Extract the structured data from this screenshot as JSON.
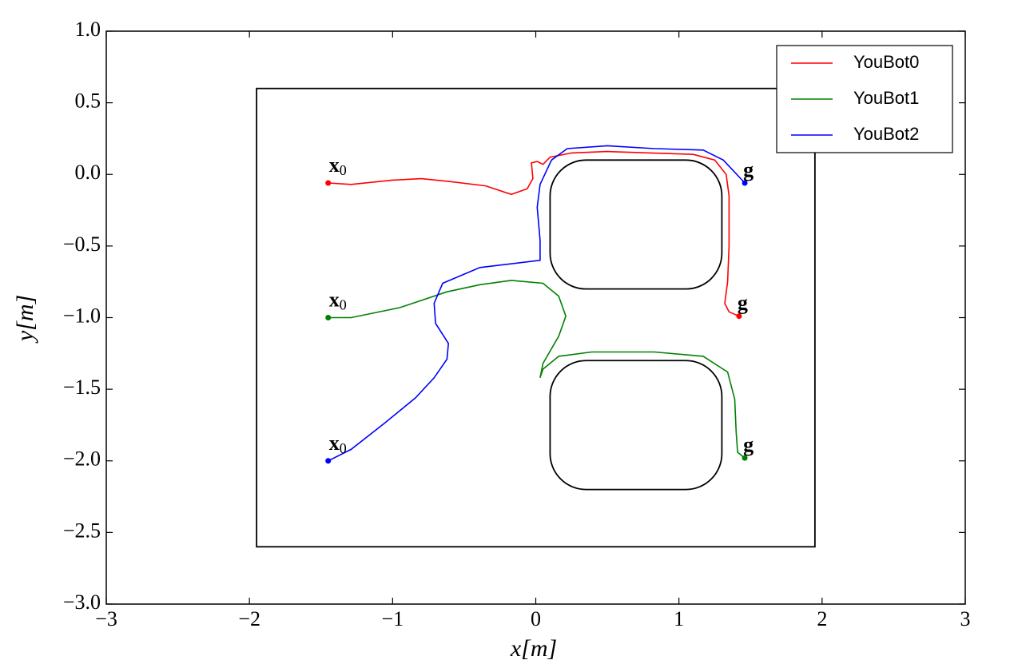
{
  "chart_data": {
    "type": "line",
    "xlabel": "x[m]",
    "ylabel": "y[m]",
    "xlim": [
      -3,
      3
    ],
    "ylim": [
      -3,
      1
    ],
    "xticks": [
      {
        "value": -3,
        "label": "−3"
      },
      {
        "value": -2,
        "label": "−2"
      },
      {
        "value": -1,
        "label": "−1"
      },
      0,
      1,
      2,
      3
    ],
    "yticks": [
      {
        "value": -3,
        "label": "−3.0"
      },
      {
        "value": -2.5,
        "label": "−2.5"
      },
      {
        "value": -2,
        "label": "−2.0"
      },
      {
        "value": -1.5,
        "label": "−1.5"
      },
      {
        "value": -1,
        "label": "−1.0"
      },
      {
        "value": -0.5,
        "label": "−0.5"
      },
      {
        "value": 0,
        "label": "0.0"
      },
      0.5,
      {
        "value": 1,
        "label": "1.0"
      }
    ],
    "grid": false,
    "legend": "upper right",
    "start_label": {
      "text": "x",
      "sub": "0"
    },
    "goal_label": "g",
    "obstacles": {
      "color": "#000000",
      "rects": [
        {
          "xlim": [
            -1.95,
            1.95
          ],
          "ylim": [
            -2.6,
            0.6
          ],
          "rounded": false
        },
        {
          "xlim": [
            0.1,
            1.3
          ],
          "ylim": [
            -0.8,
            0.1
          ],
          "rounded": true
        },
        {
          "xlim": [
            0.1,
            1.3
          ],
          "ylim": [
            -2.2,
            -1.3
          ],
          "rounded": true
        }
      ]
    },
    "series": [
      {
        "name": "YouBot0",
        "color": "#ff0000",
        "x": [
          -1.45,
          -1.29,
          -1.0,
          -0.8,
          -0.6,
          -0.35,
          -0.17,
          -0.06,
          -0.02,
          -0.03,
          0.01,
          0.05,
          0.1,
          0.25,
          0.5,
          0.8,
          1.1,
          1.25,
          1.33,
          1.35,
          1.35,
          1.34,
          1.32,
          1.35,
          1.42
        ],
        "y": [
          -0.06,
          -0.07,
          -0.04,
          -0.03,
          -0.05,
          -0.08,
          -0.14,
          -0.1,
          -0.03,
          0.08,
          0.09,
          0.07,
          0.12,
          0.15,
          0.16,
          0.15,
          0.14,
          0.1,
          0.0,
          -0.15,
          -0.5,
          -0.75,
          -0.9,
          -0.96,
          -0.99
        ]
      },
      {
        "name": "YouBot1",
        "color": "#008000",
        "x": [
          -1.45,
          -1.29,
          -0.95,
          -0.62,
          -0.39,
          -0.17,
          0.05,
          0.16,
          0.21,
          0.16,
          0.05,
          0.03,
          0.05,
          0.16,
          0.39,
          0.83,
          1.17,
          1.34,
          1.39,
          1.4,
          1.41,
          1.46
        ],
        "y": [
          -1.0,
          -1.0,
          -0.93,
          -0.82,
          -0.77,
          -0.74,
          -0.76,
          -0.85,
          -0.99,
          -1.13,
          -1.32,
          -1.42,
          -1.36,
          -1.27,
          -1.24,
          -1.24,
          -1.27,
          -1.38,
          -1.57,
          -1.8,
          -1.94,
          -1.98
        ]
      },
      {
        "name": "YouBot2",
        "color": "#0000ff",
        "x": [
          -1.45,
          -1.29,
          -1.06,
          -0.84,
          -0.71,
          -0.62,
          -0.61,
          -0.7,
          -0.71,
          -0.65,
          -0.39,
          0.03,
          0.03,
          0.01,
          0.03,
          0.11,
          0.22,
          0.5,
          0.83,
          1.17,
          1.31,
          1.46
        ],
        "y": [
          -2.0,
          -1.92,
          -1.74,
          -1.56,
          -1.42,
          -1.29,
          -1.18,
          -1.04,
          -0.9,
          -0.76,
          -0.65,
          -0.6,
          -0.46,
          -0.23,
          -0.07,
          0.1,
          0.18,
          0.2,
          0.18,
          0.17,
          0.1,
          -0.06
        ]
      }
    ]
  }
}
